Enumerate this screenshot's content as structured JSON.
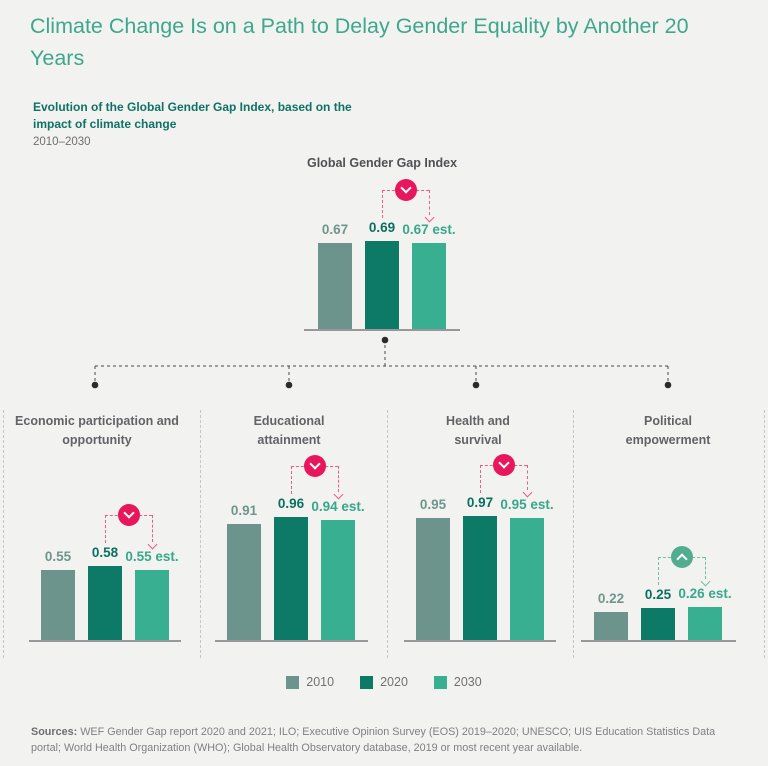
{
  "title": "Climate Change Is on a Path to Delay Gender Equality by Another 20 Years",
  "subtitle": "Evolution of the Global Gender Gap Index, based on the impact of climate change",
  "period": "2010–2030",
  "colors": {
    "background": "#f2f2f1",
    "title": "#3ea78c",
    "subtitle": "#0e7264",
    "series": [
      "#6d948c",
      "#0c7a66",
      "#39af91"
    ],
    "series_label_text": [
      "#6f968d",
      "#0b6f60",
      "#38a78b"
    ],
    "decrease": "#e8175d",
    "decrease_dash": "#ea5c8c",
    "increase": "#52ad90",
    "increase_dash": "#74bda4"
  },
  "chart_data": [
    {
      "type": "bar",
      "name": "Global Gender Gap Index",
      "categories": [
        "2010",
        "2020",
        "2030"
      ],
      "values": [
        0.67,
        0.69,
        0.67
      ],
      "value_labels": [
        "0.67",
        "0.69",
        "0.67 est."
      ],
      "trend": "decrease",
      "ylim": [
        0,
        1
      ],
      "grid": false
    },
    {
      "type": "bar",
      "name": "Economic participation and opportunity",
      "categories": [
        "2010",
        "2020",
        "2030"
      ],
      "values": [
        0.55,
        0.58,
        0.55
      ],
      "value_labels": [
        "0.55",
        "0.58",
        "0.55 est."
      ],
      "trend": "decrease",
      "ylim": [
        0,
        1
      ],
      "grid": false
    },
    {
      "type": "bar",
      "name": "Educational attainment",
      "categories": [
        "2010",
        "2020",
        "2030"
      ],
      "values": [
        0.91,
        0.96,
        0.94
      ],
      "value_labels": [
        "0.91",
        "0.96",
        "0.94 est."
      ],
      "trend": "decrease",
      "ylim": [
        0,
        1
      ],
      "grid": false
    },
    {
      "type": "bar",
      "name": "Health and survival",
      "categories": [
        "2010",
        "2020",
        "2030"
      ],
      "values": [
        0.95,
        0.97,
        0.95
      ],
      "value_labels": [
        "0.95",
        "0.97",
        "0.95 est."
      ],
      "trend": "decrease",
      "ylim": [
        0,
        1
      ],
      "grid": false
    },
    {
      "type": "bar",
      "name": "Political empowerment",
      "categories": [
        "2010",
        "2020",
        "2030"
      ],
      "values": [
        0.22,
        0.25,
        0.26
      ],
      "value_labels": [
        "0.22",
        "0.25",
        "0.26 est."
      ],
      "trend": "increase",
      "ylim": [
        0,
        1
      ],
      "grid": false
    }
  ],
  "legend": {
    "items": [
      {
        "label": "2010"
      },
      {
        "label": "2020"
      },
      {
        "label": "2030"
      }
    ]
  },
  "sources": {
    "label": "Sources:",
    "text": " WEF Gender Gap report 2020 and 2021; ILO; Executive Opinion Survey (EOS) 2019–2020; UNESCO; UIS Education Statistics Data portal; World Health Organization (WHO); Global Health Observatory database, 2019 or most recent year available."
  }
}
